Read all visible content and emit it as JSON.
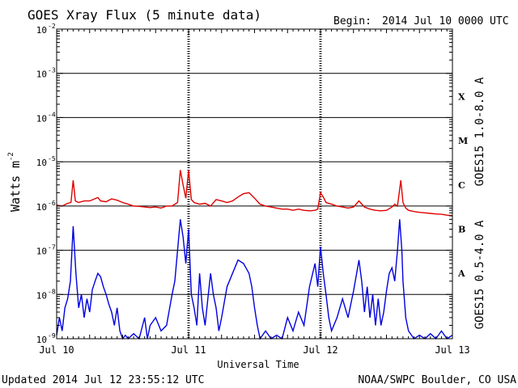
{
  "header": {
    "title": "GOES Xray Flux (5 minute data)",
    "begin_label": "Begin:",
    "begin_value": "2014 Jul 10 0000 UTC"
  },
  "footer": {
    "updated": "Updated 2014 Jul 12 23:55:12 UTC",
    "credit": "NOAA/SWPC Boulder, CO USA"
  },
  "chart_data": {
    "type": "line",
    "title": "GOES Xray Flux (5 minute data)",
    "xlabel": "Universal Time",
    "ylabel": "Watts m",
    "ylabel_sup": "-2",
    "y_scale": "log",
    "ylim": [
      1e-09,
      0.01
    ],
    "y_ticks": [
      {
        "value": 0.01,
        "mant": "10",
        "exp": "-2"
      },
      {
        "value": 0.001,
        "mant": "10",
        "exp": "-3"
      },
      {
        "value": 0.0001,
        "mant": "10",
        "exp": "-4"
      },
      {
        "value": 1e-05,
        "mant": "10",
        "exp": "-5"
      },
      {
        "value": 1e-06,
        "mant": "10",
        "exp": "-6"
      },
      {
        "value": 1e-07,
        "mant": "10",
        "exp": "-7"
      },
      {
        "value": 1e-08,
        "mant": "10",
        "exp": "-8"
      },
      {
        "value": 1e-09,
        "mant": "10",
        "exp": "-9"
      }
    ],
    "x_units": "hours since 2014 Jul 10 0000 UTC",
    "xlim": [
      0,
      72
    ],
    "x_ticks": [
      {
        "value": 0,
        "label": "Jul 10"
      },
      {
        "value": 24,
        "label": "Jul 11"
      },
      {
        "value": 48,
        "label": "Jul 12"
      },
      {
        "value": 72,
        "label": "Jul 13"
      }
    ],
    "flare_classes": [
      {
        "label": "X",
        "value": 0.0003
      },
      {
        "label": "M",
        "value": 3e-05
      },
      {
        "label": "C",
        "value": 3e-06
      },
      {
        "label": "B",
        "value": 3e-07
      },
      {
        "label": "A",
        "value": 3e-08
      }
    ],
    "gridlines": [
      0.001,
      0.0001,
      1e-05,
      1e-06,
      1e-07,
      1e-08
    ],
    "series": [
      {
        "name": "GOES15 1.0-8.0 A",
        "color": "#e00000",
        "points": [
          [
            0,
            1.05e-06
          ],
          [
            1,
            1e-06
          ],
          [
            2,
            1.15e-06
          ],
          [
            2.6,
            1.2e-06
          ],
          [
            3,
            3.8e-06
          ],
          [
            3.4,
            1.3e-06
          ],
          [
            4,
            1.2e-06
          ],
          [
            5,
            1.3e-06
          ],
          [
            6,
            1.3e-06
          ],
          [
            7.5,
            1.55e-06
          ],
          [
            8,
            1.3e-06
          ],
          [
            9,
            1.25e-06
          ],
          [
            10,
            1.45e-06
          ],
          [
            11,
            1.35e-06
          ],
          [
            12,
            1.2e-06
          ],
          [
            13,
            1.1e-06
          ],
          [
            14,
            1e-06
          ],
          [
            15,
            9.8e-07
          ],
          [
            16,
            9.5e-07
          ],
          [
            17,
            9.2e-07
          ],
          [
            18,
            9.5e-07
          ],
          [
            19,
            9e-07
          ],
          [
            20,
            1e-06
          ],
          [
            21,
            1e-06
          ],
          [
            22,
            1.2e-06
          ],
          [
            22.5,
            6.5e-06
          ],
          [
            23,
            3e-06
          ],
          [
            23.5,
            1.5e-06
          ],
          [
            24,
            6.5e-06
          ],
          [
            24.5,
            1.4e-06
          ],
          [
            25,
            1.2e-06
          ],
          [
            26,
            1.1e-06
          ],
          [
            27,
            1.15e-06
          ],
          [
            28,
            1e-06
          ],
          [
            29,
            1.4e-06
          ],
          [
            30,
            1.3e-06
          ],
          [
            31,
            1.2e-06
          ],
          [
            32,
            1.3e-06
          ],
          [
            33,
            1.6e-06
          ],
          [
            34,
            1.9e-06
          ],
          [
            35,
            2e-06
          ],
          [
            36,
            1.5e-06
          ],
          [
            37,
            1.1e-06
          ],
          [
            38,
            1e-06
          ],
          [
            39,
            9.5e-07
          ],
          [
            40,
            9e-07
          ],
          [
            41,
            8.5e-07
          ],
          [
            42,
            8.5e-07
          ],
          [
            43,
            8e-07
          ],
          [
            44,
            8.5e-07
          ],
          [
            45,
            8e-07
          ],
          [
            46,
            7.8e-07
          ],
          [
            47,
            8e-07
          ],
          [
            47.5,
            8.5e-07
          ],
          [
            48,
            2e-06
          ],
          [
            48.5,
            1.6e-06
          ],
          [
            49,
            1.2e-06
          ],
          [
            50,
            1.1e-06
          ],
          [
            51,
            1e-06
          ],
          [
            52,
            9.5e-07
          ],
          [
            53,
            9e-07
          ],
          [
            54,
            9.5e-07
          ],
          [
            55,
            1.3e-06
          ],
          [
            56,
            9.5e-07
          ],
          [
            57,
            8.5e-07
          ],
          [
            58,
            8e-07
          ],
          [
            59,
            7.8e-07
          ],
          [
            60,
            8e-07
          ],
          [
            61,
            9.5e-07
          ],
          [
            61.5,
            1.1e-06
          ],
          [
            62,
            1e-06
          ],
          [
            62.6,
            3.8e-06
          ],
          [
            63,
            1.2e-06
          ],
          [
            63.5,
            9e-07
          ],
          [
            64,
            8e-07
          ],
          [
            65,
            7.5e-07
          ],
          [
            66,
            7.2e-07
          ],
          [
            67,
            7e-07
          ],
          [
            68,
            6.8e-07
          ],
          [
            69,
            6.6e-07
          ],
          [
            70,
            6.5e-07
          ],
          [
            71,
            6.2e-07
          ],
          [
            72,
            6e-07
          ]
        ]
      },
      {
        "name": "GOES15 0.5-4.0 A",
        "color": "#0000e0",
        "points": [
          [
            0,
            1.2e-09
          ],
          [
            0.5,
            3e-09
          ],
          [
            1,
            1.5e-09
          ],
          [
            1.5,
            5e-09
          ],
          [
            2,
            8e-09
          ],
          [
            2.5,
            2e-08
          ],
          [
            3,
            3.5e-07
          ],
          [
            3.5,
            3e-08
          ],
          [
            4,
            5e-09
          ],
          [
            4.5,
            1e-08
          ],
          [
            5,
            3e-09
          ],
          [
            5.5,
            8e-09
          ],
          [
            6,
            4e-09
          ],
          [
            6.5,
            1.3e-08
          ],
          [
            7,
            2e-08
          ],
          [
            7.5,
            3e-08
          ],
          [
            8,
            2.5e-08
          ],
          [
            8.5,
            1.5e-08
          ],
          [
            9,
            1e-08
          ],
          [
            9.5,
            6e-09
          ],
          [
            10,
            4e-09
          ],
          [
            10.5,
            2e-09
          ],
          [
            11,
            5e-09
          ],
          [
            11.5,
            1.5e-09
          ],
          [
            12,
            1e-09
          ],
          [
            12.5,
            1.2e-09
          ],
          [
            13,
            1e-09
          ],
          [
            14,
            1.3e-09
          ],
          [
            15,
            1e-09
          ],
          [
            16,
            3e-09
          ],
          [
            16.5,
            1e-09
          ],
          [
            17,
            2e-09
          ],
          [
            18,
            3e-09
          ],
          [
            19,
            1.5e-09
          ],
          [
            20,
            2e-09
          ],
          [
            21,
            1e-08
          ],
          [
            21.5,
            2e-08
          ],
          [
            22,
            1e-07
          ],
          [
            22.5,
            5e-07
          ],
          [
            23,
            2e-07
          ],
          [
            23.5,
            5e-08
          ],
          [
            24,
            3e-07
          ],
          [
            24.5,
            1e-08
          ],
          [
            25,
            5e-09
          ],
          [
            25.5,
            2e-09
          ],
          [
            26,
            3e-08
          ],
          [
            26.5,
            5e-09
          ],
          [
            27,
            2e-09
          ],
          [
            27.5,
            8e-09
          ],
          [
            28,
            3e-08
          ],
          [
            28.5,
            1e-08
          ],
          [
            29,
            5e-09
          ],
          [
            29.5,
            1.5e-09
          ],
          [
            30,
            3e-09
          ],
          [
            31,
            1.5e-08
          ],
          [
            32,
            3e-08
          ],
          [
            33,
            6e-08
          ],
          [
            34,
            5e-08
          ],
          [
            35,
            3e-08
          ],
          [
            35.5,
            1.5e-08
          ],
          [
            36,
            5e-09
          ],
          [
            36.5,
            2e-09
          ],
          [
            37,
            1e-09
          ],
          [
            38,
            1.5e-09
          ],
          [
            39,
            1e-09
          ],
          [
            40,
            1.2e-09
          ],
          [
            41,
            1e-09
          ],
          [
            42,
            3e-09
          ],
          [
            43,
            1.5e-09
          ],
          [
            44,
            4e-09
          ],
          [
            45,
            2e-09
          ],
          [
            46,
            1.5e-08
          ],
          [
            47,
            5e-08
          ],
          [
            47.5,
            1.5e-08
          ],
          [
            48,
            1.2e-07
          ],
          [
            48.5,
            3e-08
          ],
          [
            49,
            1e-08
          ],
          [
            49.5,
            3e-09
          ],
          [
            50,
            1.5e-09
          ],
          [
            51,
            3e-09
          ],
          [
            52,
            8e-09
          ],
          [
            53,
            3e-09
          ],
          [
            54,
            1.2e-08
          ],
          [
            55,
            6e-08
          ],
          [
            55.5,
            2e-08
          ],
          [
            56,
            4e-09
          ],
          [
            56.5,
            1.5e-08
          ],
          [
            57,
            3e-09
          ],
          [
            57.5,
            1e-08
          ],
          [
            58,
            2e-09
          ],
          [
            58.5,
            8e-09
          ],
          [
            59,
            2e-09
          ],
          [
            59.5,
            4e-09
          ],
          [
            60,
            1.2e-08
          ],
          [
            60.5,
            3e-08
          ],
          [
            61,
            4e-08
          ],
          [
            61.5,
            2e-08
          ],
          [
            62,
            1e-07
          ],
          [
            62.4,
            5e-07
          ],
          [
            62.8,
            1e-07
          ],
          [
            63,
            2e-08
          ],
          [
            63.5,
            3e-09
          ],
          [
            64,
            1.5e-09
          ],
          [
            65,
            1e-09
          ],
          [
            66,
            1.2e-09
          ],
          [
            67,
            1e-09
          ],
          [
            68,
            1.3e-09
          ],
          [
            69,
            1e-09
          ],
          [
            70,
            1.5e-09
          ],
          [
            71,
            1e-09
          ],
          [
            72,
            1.2e-09
          ]
        ]
      }
    ]
  }
}
